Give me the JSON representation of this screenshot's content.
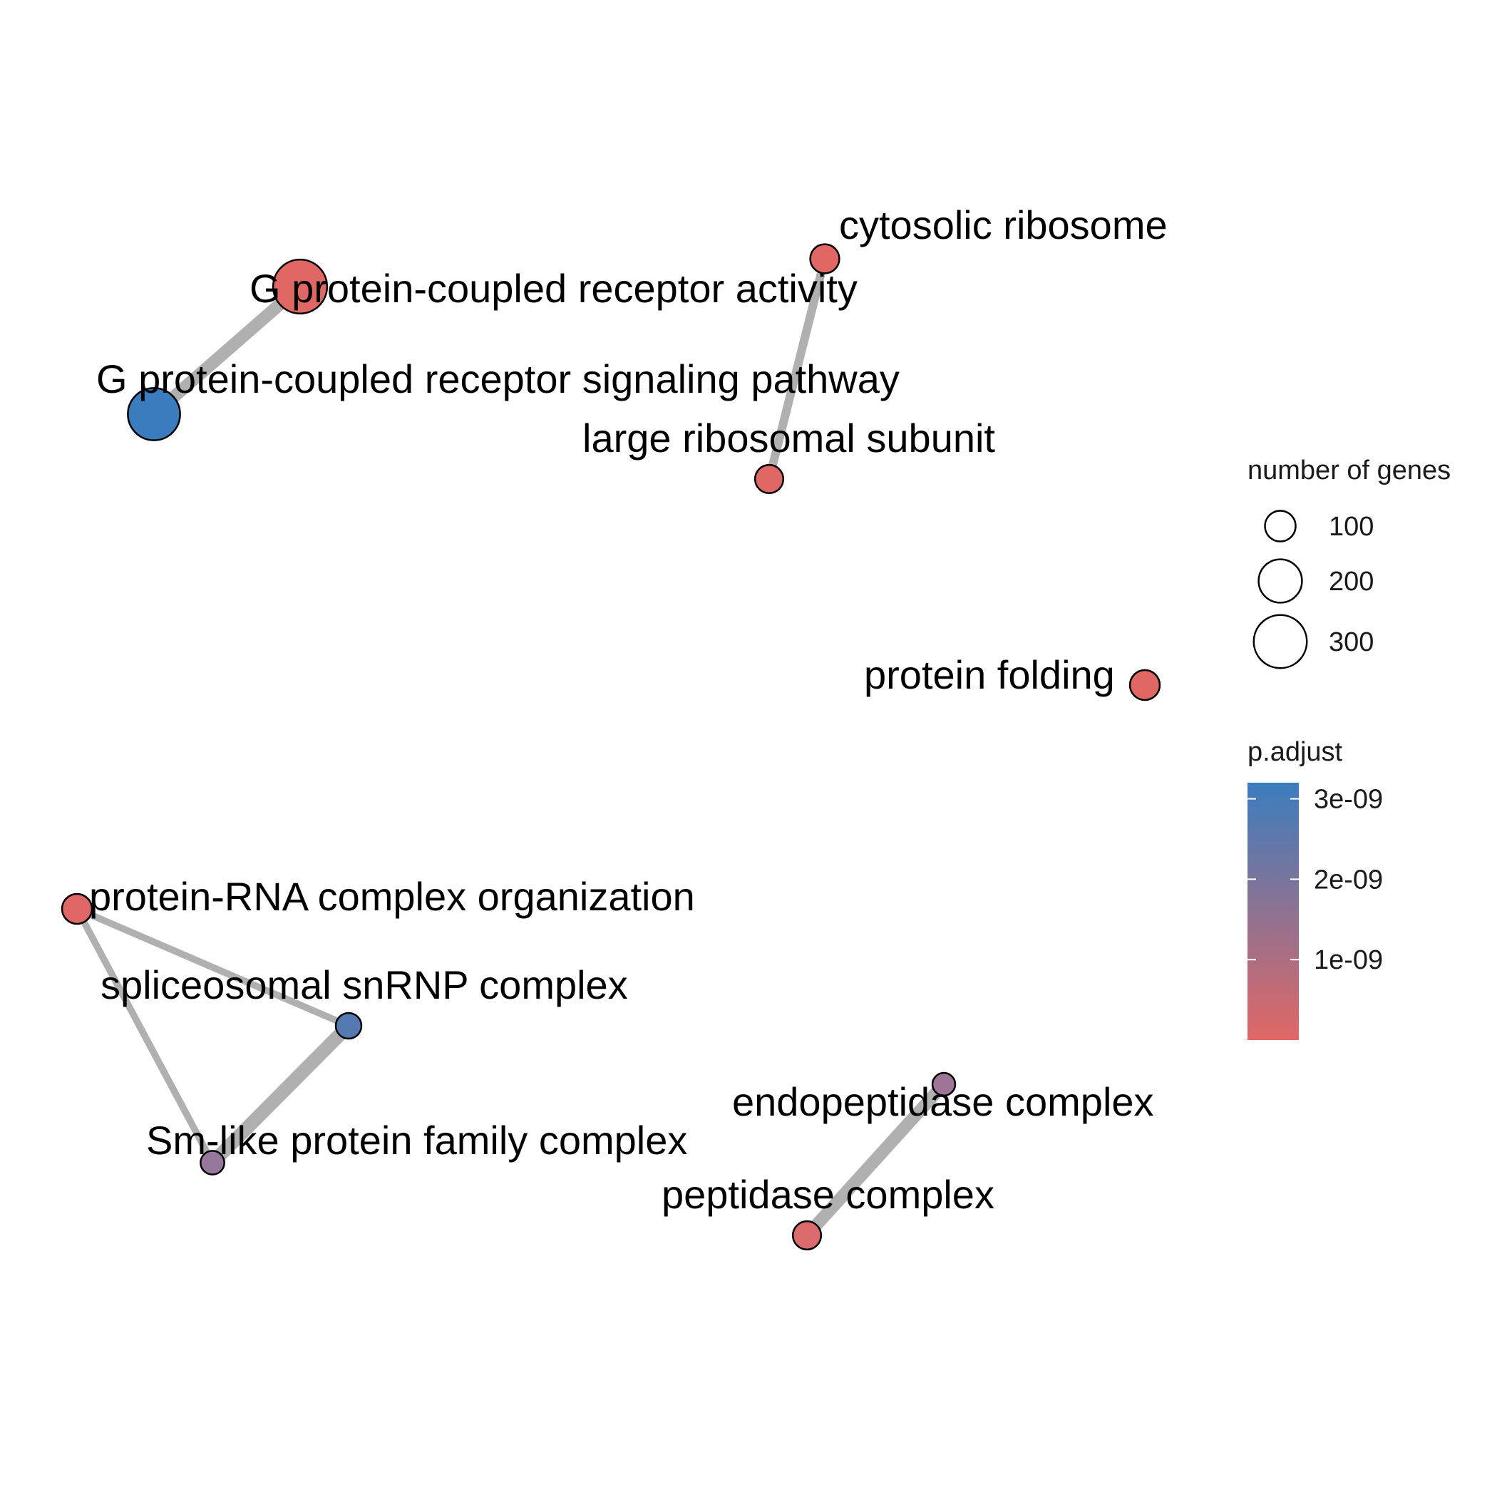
{
  "chart_data": {
    "type": "network",
    "nodes": [
      {
        "label": "G protein-coupled receptor activity",
        "genes": 310,
        "p_adjust": 1e-11,
        "color": "#E16765"
      },
      {
        "label": "G protein-coupled receptor signaling pathway",
        "genes": 290,
        "p_adjust": 3.2e-09,
        "color": "#3A7DBE"
      },
      {
        "label": "cytosolic ribosome",
        "genes": 90,
        "p_adjust": 1e-11,
        "color": "#E16765"
      },
      {
        "label": "large ribosomal subunit",
        "genes": 85,
        "p_adjust": 1e-11,
        "color": "#E16765"
      },
      {
        "label": "protein folding",
        "genes": 95,
        "p_adjust": 1e-11,
        "color": "#E16765"
      },
      {
        "label": "protein-RNA complex organization",
        "genes": 95,
        "p_adjust": 1e-10,
        "color": "#DF6867"
      },
      {
        "label": "spliceosomal snRNP complex",
        "genes": 70,
        "p_adjust": 2.9e-09,
        "color": "#5479B3"
      },
      {
        "label": "Sm-like protein family complex",
        "genes": 60,
        "p_adjust": 1.8e-09,
        "color": "#96789D"
      },
      {
        "label": "endopeptidase complex",
        "genes": 55,
        "p_adjust": 1.7e-09,
        "color": "#9E7597"
      },
      {
        "label": "peptidase complex",
        "genes": 85,
        "p_adjust": 3e-10,
        "color": "#DB6A6C"
      }
    ],
    "edges": [
      {
        "source": "G protein-coupled receptor activity",
        "target": "G protein-coupled receptor signaling pathway",
        "weight": 0.85
      },
      {
        "source": "cytosolic ribosome",
        "target": "large ribosomal subunit",
        "weight": 0.5
      },
      {
        "source": "protein-RNA complex organization",
        "target": "spliceosomal snRNP complex",
        "weight": 0.35
      },
      {
        "source": "protein-RNA complex organization",
        "target": "Sm-like protein family complex",
        "weight": 0.35
      },
      {
        "source": "spliceosomal snRNP complex",
        "target": "Sm-like protein family complex",
        "weight": 0.95
      },
      {
        "source": "endopeptidase complex",
        "target": "peptidase complex",
        "weight": 0.85
      }
    ],
    "size_legend": {
      "title": "number of genes",
      "entries": [
        {
          "label": "100",
          "value": 100
        },
        {
          "label": "200",
          "value": 200
        },
        {
          "label": "300",
          "value": 300
        }
      ]
    },
    "color_legend": {
      "title": "p.adjust",
      "low_color": "#E16765",
      "high_color": "#3A7DBE",
      "ticks": [
        {
          "label": "1e-09",
          "value": 1e-09
        },
        {
          "label": "2e-09",
          "value": 2e-09
        },
        {
          "label": "3e-09",
          "value": 3e-09
        }
      ],
      "range": [
        0,
        3.2e-09
      ]
    },
    "edge_color": "#B0B0B0",
    "node_stroke": "#000000"
  }
}
